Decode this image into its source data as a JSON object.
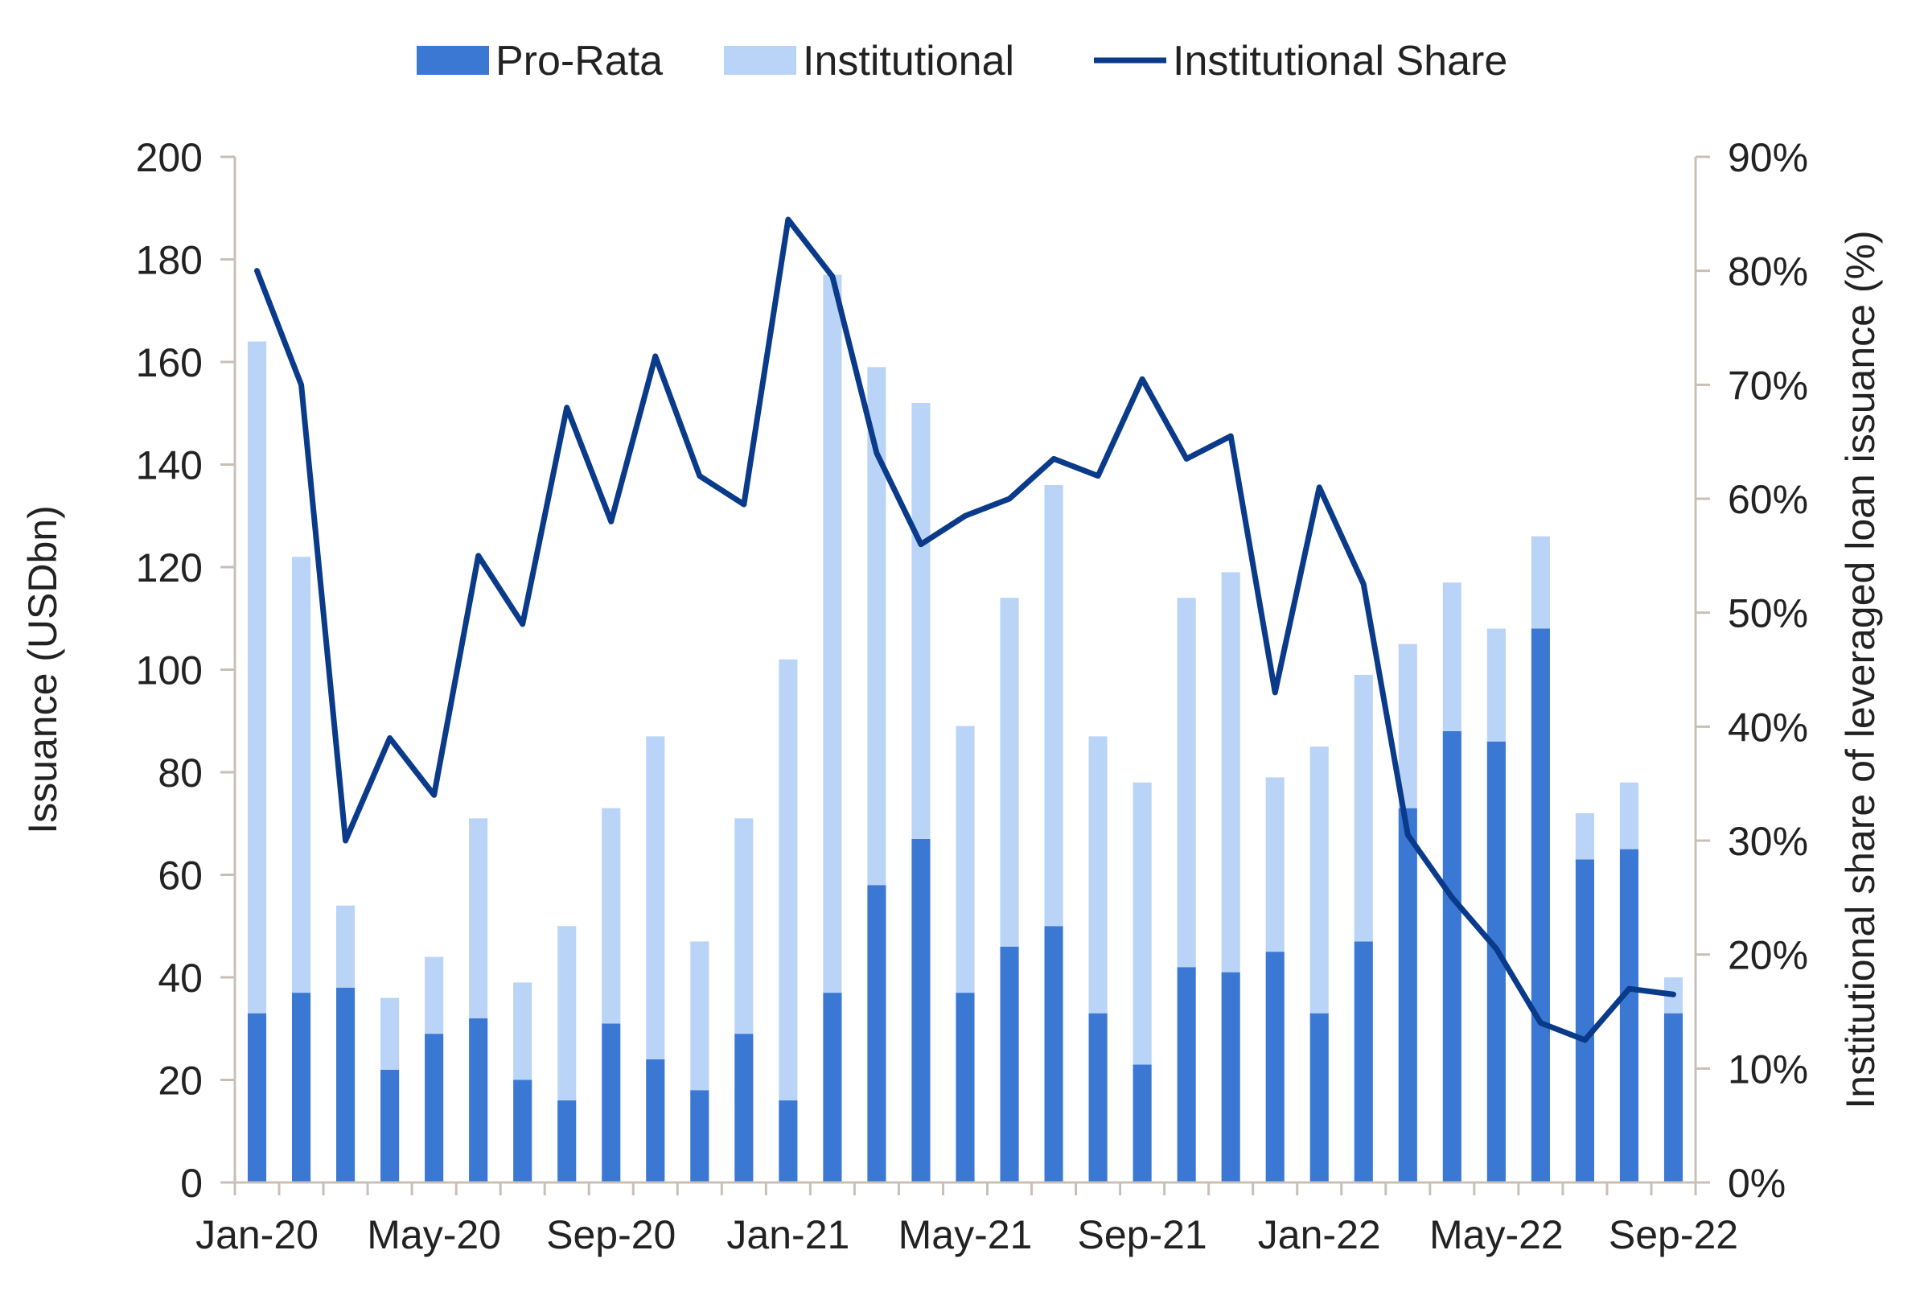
{
  "chart_data": {
    "type": "bar",
    "stacked": true,
    "categories": [
      "Jan-20",
      "Feb-20",
      "Mar-20",
      "Apr-20",
      "May-20",
      "Jun-20",
      "Jul-20",
      "Aug-20",
      "Sep-20",
      "Oct-20",
      "Nov-20",
      "Dec-20",
      "Jan-21",
      "Feb-21",
      "Mar-21",
      "Apr-21",
      "May-21",
      "Jun-21",
      "Jul-21",
      "Aug-21",
      "Sep-21",
      "Oct-21",
      "Nov-21",
      "Dec-21",
      "Jan-22",
      "Feb-22",
      "Mar-22",
      "Apr-22",
      "May-22",
      "Jun-22",
      "Jul-22",
      "Aug-22",
      "Sep-22"
    ],
    "tick_labels": [
      "Jan-20",
      "May-20",
      "Sep-20",
      "Jan-21",
      "May-21",
      "Sep-21",
      "Jan-22",
      "May-22",
      "Sep-22"
    ],
    "series": [
      {
        "name": "Pro-Rata",
        "type": "bar",
        "axis": "left",
        "color": "#3a78d4",
        "values": [
          33,
          37,
          38,
          22,
          29,
          32,
          20,
          16,
          31,
          24,
          18,
          29,
          16,
          37,
          58,
          67,
          37,
          46,
          50,
          33,
          23,
          42,
          41,
          45,
          33,
          47,
          73,
          88,
          86,
          108,
          63,
          65,
          33
        ]
      },
      {
        "name": "Institutional",
        "type": "bar",
        "axis": "left",
        "color": "#bad4f8",
        "values": [
          131,
          85,
          16,
          14,
          15,
          39,
          19,
          34,
          42,
          63,
          29,
          42,
          86,
          140,
          101,
          85,
          52,
          68,
          86,
          54,
          55,
          72,
          78,
          34,
          52,
          52,
          32,
          29,
          22,
          18,
          9,
          13,
          7
        ]
      },
      {
        "name": "Institutional Share",
        "type": "line",
        "axis": "right",
        "color": "#0a3a8a",
        "values": [
          80,
          70,
          30,
          39,
          34,
          55,
          49,
          68,
          58,
          72.5,
          62,
          59.5,
          84.5,
          79.5,
          64,
          56,
          58.5,
          60,
          63.5,
          62,
          70.5,
          63.5,
          65.5,
          43,
          61,
          52.5,
          30.5,
          25,
          20.5,
          14,
          12.5,
          17,
          16.5
        ]
      }
    ],
    "y_left": {
      "label": "Issuance (USDbn)",
      "min": 0,
      "max": 200,
      "ticks": [
        "0",
        "20",
        "40",
        "60",
        "80",
        "100",
        "120",
        "140",
        "160",
        "180",
        "200"
      ]
    },
    "y_right": {
      "label": "Institutional share of leveraged loan issuance (%)",
      "min": 0,
      "max": 90,
      "ticks": [
        "0%",
        "10%",
        "20%",
        "30%",
        "40%",
        "50%",
        "60%",
        "70%",
        "80%",
        "90%"
      ]
    },
    "legend_position": "top",
    "grid": false
  }
}
